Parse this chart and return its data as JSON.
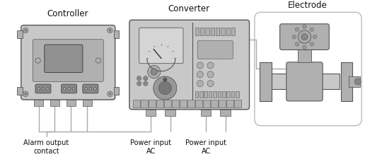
{
  "bg_color": "#ffffff",
  "label_controller": "Controller",
  "label_converter": "Converter",
  "label_electrode": "Electrode",
  "label_alarm": "Alarm output\ncontact",
  "label_power1": "Power input\nAC",
  "label_power2": "Power input\nAC",
  "gray_light": "#c8c8c8",
  "gray_mid": "#b0b0b0",
  "gray_dark": "#888888",
  "edge_color": "#555555",
  "line_color": "#aaaaaa",
  "text_color": "#111111"
}
